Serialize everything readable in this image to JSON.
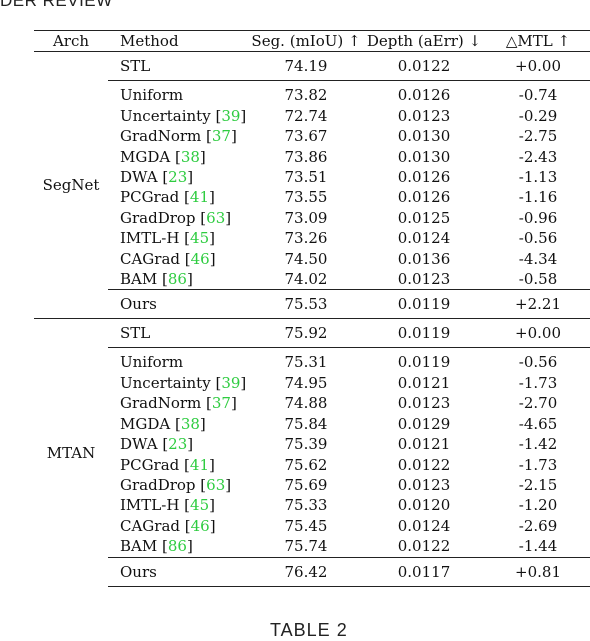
{
  "header_fragment": "DER REVIEW",
  "caption": "TABLE 2",
  "table": {
    "headers": {
      "arch": "Arch",
      "method": "Method",
      "seg": "Seg. (mIoU) ↑",
      "depth": "Depth (aErr) ↓",
      "mtl": "△MTL ↑"
    },
    "groups": [
      {
        "arch": "SegNet",
        "rows": [
          {
            "method": "STL",
            "cite": "",
            "seg": "74.19",
            "depth": "0.0122",
            "mtl": "+0.00"
          },
          {
            "method": "Uniform",
            "cite": "",
            "seg": "73.82",
            "depth": "0.0126",
            "mtl": "-0.74"
          },
          {
            "method": "Uncertainty ",
            "cite": "39",
            "seg": "72.74",
            "depth": "0.0123",
            "mtl": "-0.29"
          },
          {
            "method": "GradNorm ",
            "cite": "37",
            "seg": "73.67",
            "depth": "0.0130",
            "mtl": "-2.75"
          },
          {
            "method": "MGDA ",
            "cite": "38",
            "seg": "73.86",
            "depth": "0.0130",
            "mtl": "-2.43"
          },
          {
            "method": "DWA ",
            "cite": "23",
            "seg": "73.51",
            "depth": "0.0126",
            "mtl": "-1.13"
          },
          {
            "method": "PCGrad ",
            "cite": "41",
            "seg": "73.55",
            "depth": "0.0126",
            "mtl": "-1.16"
          },
          {
            "method": "GradDrop ",
            "cite": "63",
            "seg": "73.09",
            "depth": "0.0125",
            "mtl": "-0.96"
          },
          {
            "method": "IMTL-H ",
            "cite": "45",
            "seg": "73.26",
            "depth": "0.0124",
            "mtl": "-0.56"
          },
          {
            "method": "CAGrad ",
            "cite": "46",
            "seg": "74.50",
            "depth": "0.0136",
            "mtl": "-4.34"
          },
          {
            "method": "BAM ",
            "cite": "86",
            "seg": "74.02",
            "depth": "0.0123",
            "mtl": "-0.58"
          },
          {
            "method": "Ours",
            "cite": "",
            "seg": "75.53",
            "depth": "0.0119",
            "mtl": "+2.21"
          }
        ]
      },
      {
        "arch": "MTAN",
        "rows": [
          {
            "method": "STL",
            "cite": "",
            "seg": "75.92",
            "depth": "0.0119",
            "mtl": "+0.00"
          },
          {
            "method": "Uniform",
            "cite": "",
            "seg": "75.31",
            "depth": "0.0119",
            "mtl": "-0.56"
          },
          {
            "method": "Uncertainty ",
            "cite": "39",
            "seg": "74.95",
            "depth": "0.0121",
            "mtl": "-1.73"
          },
          {
            "method": "GradNorm ",
            "cite": "37",
            "seg": "74.88",
            "depth": "0.0123",
            "mtl": "-2.70"
          },
          {
            "method": "MGDA ",
            "cite": "38",
            "seg": "75.84",
            "depth": "0.0129",
            "mtl": "-4.65"
          },
          {
            "method": "DWA ",
            "cite": "23",
            "seg": "75.39",
            "depth": "0.0121",
            "mtl": "-1.42"
          },
          {
            "method": "PCGrad ",
            "cite": "41",
            "seg": "75.62",
            "depth": "0.0122",
            "mtl": "-1.73"
          },
          {
            "method": "GradDrop ",
            "cite": "63",
            "seg": "75.69",
            "depth": "0.0123",
            "mtl": "-2.15"
          },
          {
            "method": "IMTL-H ",
            "cite": "45",
            "seg": "75.33",
            "depth": "0.0120",
            "mtl": "-1.20"
          },
          {
            "method": "CAGrad ",
            "cite": "46",
            "seg": "75.45",
            "depth": "0.0124",
            "mtl": "-2.69"
          },
          {
            "method": "BAM ",
            "cite": "86",
            "seg": "75.74",
            "depth": "0.0122",
            "mtl": "-1.44"
          },
          {
            "method": "Ours",
            "cite": "",
            "seg": "76.42",
            "depth": "0.0117",
            "mtl": "+0.81"
          }
        ]
      }
    ]
  },
  "colors": {
    "citation": "#2ecc40",
    "text": "#111111",
    "rule": "#222222"
  }
}
